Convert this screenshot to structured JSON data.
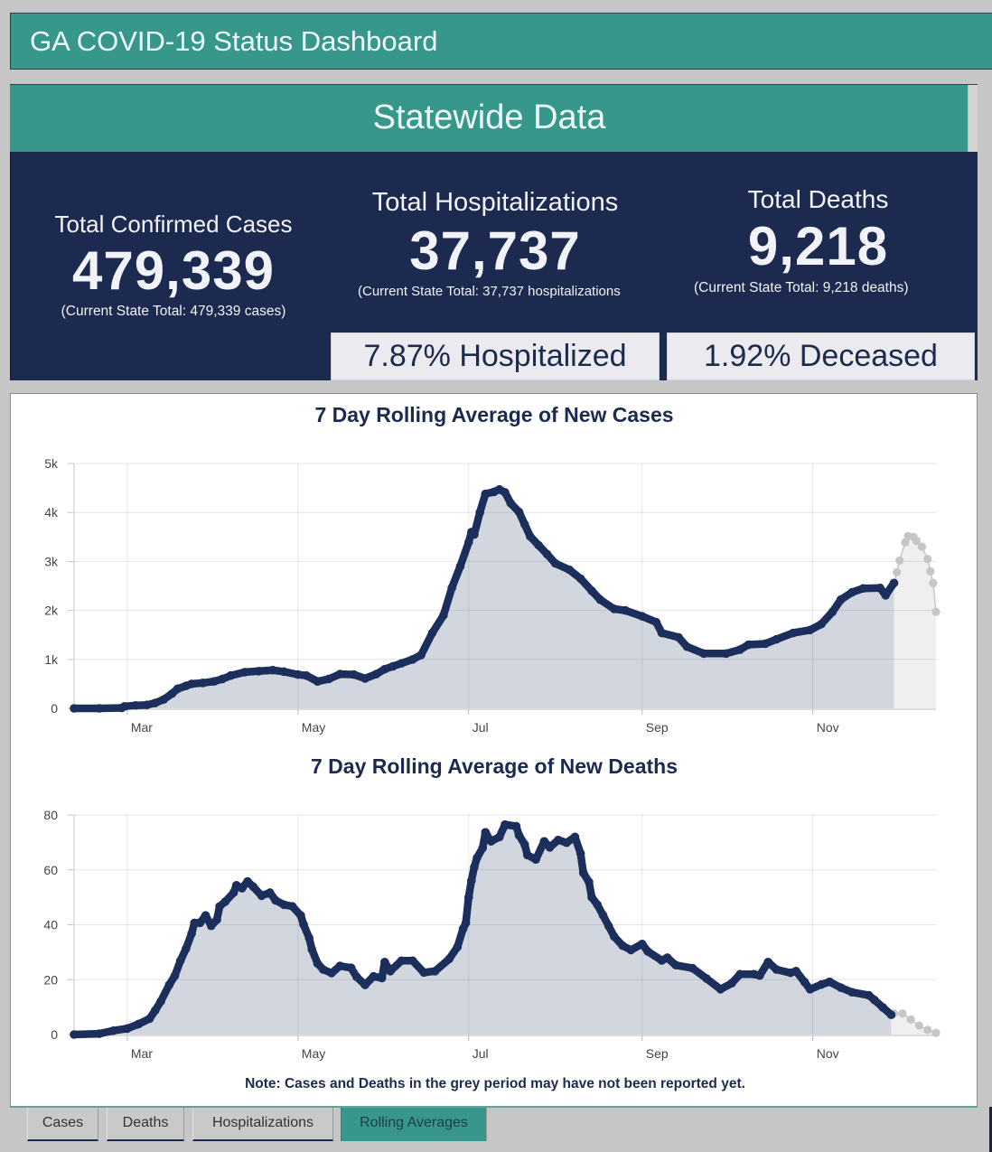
{
  "header": {
    "title": "GA COVID-19 Status Dashboard"
  },
  "statewide": {
    "title": "Statewide Data",
    "stats": [
      {
        "label": "Total Confirmed Cases",
        "value": "479,339",
        "subtext": "(Current State Total: 479,339 cases)"
      },
      {
        "label": "Total Hospitalizations",
        "value": "37,737",
        "subtext": "(Current State Total: 37,737 hospitalizations"
      },
      {
        "label": "Total Deaths",
        "value": "9,218",
        "subtext": "(Current State Total: 9,218 deaths)"
      }
    ],
    "rates": [
      {
        "text": "7.87% Hospitalized"
      },
      {
        "text": "1.92% Deceased"
      }
    ]
  },
  "chart_panel": {
    "note": "Note: Cases and Deaths in the grey period may have not been reported yet."
  },
  "colors": {
    "teal": "#36978a",
    "navy": "#1c2a4f",
    "series_line": "#1c2f5c",
    "series_fill": "#d1d6df",
    "provisional_line": "#c6c6c6",
    "provisional_fill": "#efefef"
  },
  "tabs": {
    "active": 3,
    "items": [
      {
        "label": "Cases"
      },
      {
        "label": "Deaths"
      },
      {
        "label": "Hospitalizations"
      },
      {
        "label": "Rolling Averages"
      }
    ]
  },
  "chart_data": [
    {
      "type": "area",
      "title": "7 Day Rolling Average of New Cases",
      "xlabel": "",
      "ylabel": "",
      "x_range": [
        "02-11",
        "12-15"
      ],
      "ylim": [
        0,
        5000
      ],
      "y_ticks": [
        0,
        1000,
        2000,
        3000,
        4000,
        5000
      ],
      "y_tick_labels": [
        "0",
        "1k",
        "2k",
        "3k",
        "4k",
        "5k"
      ],
      "x_ticks": [
        "03-01",
        "05-01",
        "07-01",
        "09-01",
        "11-01"
      ],
      "x_tick_labels": [
        "Mar",
        "May",
        "Jul",
        "Sep",
        "Nov"
      ],
      "grid": true,
      "legend": "none",
      "grey_period_start": "11-30",
      "series": [
        {
          "name": "reported",
          "x": [
            "02-11",
            "02-20",
            "02-28",
            "02-29",
            "03-04",
            "03-08",
            "03-11",
            "03-14",
            "03-17",
            "03-19",
            "03-22",
            "03-24",
            "03-28",
            "04-01",
            "04-04",
            "04-07",
            "04-12",
            "04-17",
            "04-22",
            "04-26",
            "05-01",
            "05-04",
            "05-08",
            "05-12",
            "05-16",
            "05-21",
            "05-25",
            "05-29",
            "06-01",
            "06-04",
            "06-07",
            "06-11",
            "06-14",
            "06-18",
            "06-22",
            "06-25",
            "06-28",
            "07-01",
            "07-02",
            "07-03",
            "07-05",
            "07-07",
            "07-10",
            "07-12",
            "07-14",
            "07-16",
            "07-19",
            "07-21",
            "07-23",
            "07-26",
            "07-29",
            "08-01",
            "08-06",
            "08-10",
            "08-14",
            "08-17",
            "08-22",
            "08-26",
            "09-01",
            "09-06",
            "09-08",
            "09-14",
            "09-17",
            "09-23",
            "10-01",
            "10-06",
            "10-09",
            "10-15",
            "10-19",
            "10-25",
            "10-31",
            "11-04",
            "11-08",
            "11-11",
            "11-15",
            "11-19",
            "11-25",
            "11-27",
            "11-30"
          ],
          "values": [
            0,
            0,
            10,
            40,
            60,
            70,
            110,
            180,
            300,
            400,
            460,
            500,
            520,
            550,
            600,
            670,
            740,
            760,
            780,
            750,
            690,
            670,
            550,
            600,
            700,
            690,
            610,
            700,
            800,
            860,
            920,
            1000,
            1090,
            1540,
            1900,
            2460,
            2900,
            3390,
            3600,
            3550,
            4000,
            4380,
            4420,
            4470,
            4410,
            4190,
            4010,
            3760,
            3510,
            3330,
            3150,
            2960,
            2830,
            2650,
            2400,
            2220,
            2030,
            2000,
            1880,
            1760,
            1540,
            1450,
            1260,
            1120,
            1120,
            1200,
            1300,
            1320,
            1410,
            1540,
            1600,
            1720,
            1970,
            2220,
            2370,
            2450,
            2460,
            2310,
            2560
          ]
        },
        {
          "name": "provisional",
          "x": [
            "11-30",
            "12-01",
            "12-02",
            "12-04",
            "12-05",
            "12-07",
            "12-08",
            "12-10",
            "12-12",
            "12-13",
            "12-14",
            "12-15"
          ],
          "values": [
            2560,
            2780,
            3020,
            3390,
            3520,
            3500,
            3420,
            3300,
            3050,
            2800,
            2560,
            1970
          ]
        }
      ]
    },
    {
      "type": "area",
      "title": "7 Day Rolling Average of New Deaths",
      "xlabel": "",
      "ylabel": "",
      "x_range": [
        "02-11",
        "12-15"
      ],
      "ylim": [
        0,
        80
      ],
      "y_ticks": [
        0,
        20,
        40,
        60,
        80
      ],
      "y_tick_labels": [
        "0",
        "20",
        "40",
        "60",
        "80"
      ],
      "x_ticks": [
        "03-01",
        "05-01",
        "07-01",
        "09-01",
        "11-01"
      ],
      "x_tick_labels": [
        "Mar",
        "May",
        "Jul",
        "Sep",
        "Nov"
      ],
      "grid": true,
      "legend": "none",
      "grey_period_start": "11-30",
      "series": [
        {
          "name": "reported",
          "x": [
            "02-11",
            "02-20",
            "02-25",
            "03-01",
            "03-05",
            "03-09",
            "03-11",
            "03-13",
            "03-16",
            "03-18",
            "03-20",
            "03-22",
            "03-24",
            "03-25",
            "03-27",
            "03-29",
            "03-31",
            "04-02",
            "04-03",
            "04-05",
            "04-08",
            "04-09",
            "04-11",
            "04-13",
            "04-15",
            "04-18",
            "04-21",
            "04-23",
            "04-26",
            "04-29",
            "05-02",
            "05-03",
            "05-05",
            "05-06",
            "05-08",
            "05-10",
            "05-13",
            "05-16",
            "05-20",
            "05-22",
            "05-25",
            "05-28",
            "05-31",
            "06-01",
            "06-03",
            "06-07",
            "06-11",
            "06-15",
            "06-19",
            "06-24",
            "06-27",
            "06-29",
            "06-30",
            "07-01",
            "07-02",
            "07-03",
            "07-04",
            "07-06",
            "07-07",
            "07-09",
            "07-12",
            "07-14",
            "07-18",
            "07-19",
            "07-21",
            "07-22",
            "07-25",
            "07-28",
            "07-30",
            "08-02",
            "08-05",
            "08-08",
            "08-10",
            "08-11",
            "08-13",
            "08-14",
            "08-16",
            "08-18",
            "08-20",
            "08-22",
            "08-25",
            "08-28",
            "09-01",
            "09-03",
            "09-08",
            "09-10",
            "09-13",
            "09-19",
            "09-24",
            "09-29",
            "10-03",
            "10-06",
            "10-11",
            "10-13",
            "10-16",
            "10-19",
            "10-24",
            "10-26",
            "10-29",
            "10-31",
            "11-04",
            "11-07",
            "11-11",
            "11-15",
            "11-21",
            "11-23",
            "11-26",
            "11-29"
          ],
          "values": [
            0,
            0.3,
            1.4,
            2.2,
            3.8,
            5.8,
            8.8,
            12.1,
            18.1,
            21.4,
            26.9,
            31.3,
            36.8,
            40.7,
            40.7,
            43.4,
            39.6,
            41.8,
            46.7,
            48.4,
            51.7,
            54.4,
            53.3,
            55.8,
            53.9,
            50.6,
            51.7,
            48.9,
            47.3,
            46.7,
            43.4,
            40.1,
            35.2,
            31,
            25.9,
            23.7,
            22.4,
            25,
            24.3,
            21,
            18.1,
            21.2,
            20.6,
            26.4,
            23.1,
            26.9,
            26.9,
            22.6,
            23.1,
            27.5,
            31.9,
            38.5,
            40.7,
            50,
            56.1,
            61,
            64.4,
            68,
            73.7,
            70.4,
            72,
            76.5,
            75.9,
            72.6,
            69.3,
            65.4,
            63.8,
            70.4,
            68.2,
            70.9,
            69.9,
            72,
            66,
            58.9,
            55.6,
            50,
            47.3,
            43.5,
            39.6,
            35.7,
            32.4,
            30.8,
            33,
            30.3,
            27,
            28,
            25.3,
            24.2,
            20.4,
            16.5,
            18.7,
            22,
            22,
            21.5,
            26.4,
            23.7,
            22.5,
            23.1,
            19.2,
            16.5,
            18.2,
            19.2,
            17.1,
            15.4,
            14.3,
            12.6,
            9.9,
            7.2
          ]
        },
        {
          "name": "provisional",
          "x": [
            "11-29",
            "11-30",
            "12-03",
            "12-06",
            "12-09",
            "12-12",
            "12-15"
          ],
          "values": [
            7.2,
            7.7,
            7.7,
            5.5,
            3.3,
            1.7,
            0.6
          ]
        }
      ]
    }
  ]
}
